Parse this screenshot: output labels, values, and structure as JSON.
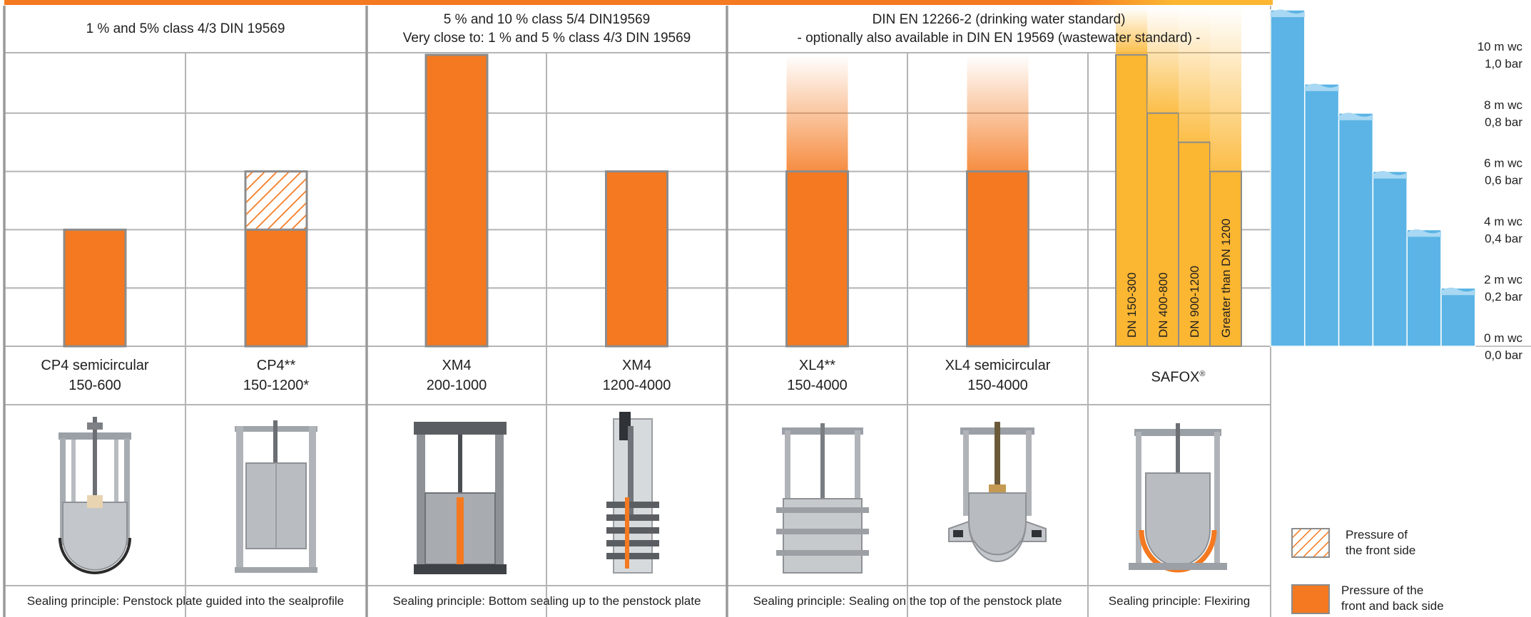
{
  "colors": {
    "orange": "#f47920",
    "orange_border": "#8c8c8c",
    "safox": "#fbb632",
    "water": "#5bb4e5",
    "water_light": "#a8d8f3",
    "grid": "#b4b4b4",
    "divider": "#9a9a9a",
    "top_stripe": "#f47920",
    "top_stripe_end": "#fbb632"
  },
  "groups": [
    {
      "line1": "1 % and 5% class 4/3 DIN 19569",
      "line2": ""
    },
    {
      "line1": "5 % and 10 % class 5/4 DIN19569",
      "line2": "Very close to: 1 % and 5 % class 4/3 DIN 19569"
    },
    {
      "line1": "DIN EN 12266-2 (drinking water standard)",
      "line2": "- optionally also available in DIN EN 19569 (wastewater standard) -"
    }
  ],
  "products": [
    {
      "name": "CP4 semicircular",
      "range": "150-600",
      "sup": "",
      "image_icon": "penstock-semicircular-photo-icon"
    },
    {
      "name": "CP4**",
      "range": "150-1200*",
      "sup": "",
      "image_icon": "penstock-frame-photo-icon"
    },
    {
      "name": "XM4",
      "range": "200-1000",
      "sup": "",
      "image_icon": "penstock-xm4-photo-icon"
    },
    {
      "name": "XM4",
      "range": "1200-4000",
      "sup": "",
      "image_icon": "penstock-tall-photo-icon"
    },
    {
      "name": "XL4**",
      "range": "150-4000",
      "sup": "",
      "image_icon": "penstock-xl4-photo-icon"
    },
    {
      "name": "XL4 semicircular",
      "range": "150-4000",
      "sup": "",
      "image_icon": "penstock-xl4-semicircular-photo-icon"
    },
    {
      "name": "SAFOX",
      "range": "",
      "sup": "®",
      "image_icon": "penstock-safox-photo-icon"
    }
  ],
  "sealing": [
    "Sealing principle: Penstock plate guided into the sealprofile",
    "Sealing principle: Bottom sealing up to the penstock plate",
    "Sealing principle: Sealing on the top of the penstock plate",
    "Sealing principle: Flexiring"
  ],
  "legend": {
    "front": [
      "Pressure of",
      "the front side"
    ],
    "both": [
      "Pressure of the",
      "front and back side"
    ]
  },
  "chart_data": {
    "type": "bar",
    "y_unit": "bar",
    "ylim": [
      0,
      1.0
    ],
    "grid": true,
    "y_ticks": [
      {
        "wc": "10 m wc",
        "bar": "1,0 bar",
        "value": 1.0
      },
      {
        "wc": "8 m wc",
        "bar": "0,8 bar",
        "value": 0.8
      },
      {
        "wc": "6 m wc",
        "bar": "0,6 bar",
        "value": 0.6
      },
      {
        "wc": "4 m wc",
        "bar": "0,4 bar",
        "value": 0.4
      },
      {
        "wc": "2 m wc",
        "bar": "0,2 bar",
        "value": 0.2
      },
      {
        "wc": "0 m wc",
        "bar": "0,0 bar",
        "value": 0.0
      }
    ],
    "bars": [
      {
        "product": "CP4 semicircular 150-600",
        "both_sides": 0.4,
        "front_side": 0.4,
        "extendable": false
      },
      {
        "product": "CP4** 150-1200*",
        "both_sides": 0.4,
        "front_side": 0.6,
        "extendable": false
      },
      {
        "product": "XM4 200-1000",
        "both_sides": 1.0,
        "front_side": 1.0,
        "extendable": false
      },
      {
        "product": "XM4 1200-4000",
        "both_sides": 0.6,
        "front_side": 0.6,
        "extendable": false
      },
      {
        "product": "XL4** 150-4000",
        "both_sides": 0.6,
        "front_side": 0.6,
        "extendable": true
      },
      {
        "product": "XL4 semicircular 150-4000",
        "both_sides": 0.6,
        "front_side": 0.6,
        "extendable": true
      }
    ],
    "safox_bars": [
      {
        "label": "DN 150-300",
        "value": 1.0
      },
      {
        "label": "DN 400-800",
        "value": 0.8
      },
      {
        "label": "DN 900-1200",
        "value": 0.7
      },
      {
        "label": "Greater than DN 1200",
        "value": 0.6
      }
    ],
    "water_steps": [
      1.0,
      0.9,
      0.8,
      0.6,
      0.4,
      0.2
    ]
  }
}
